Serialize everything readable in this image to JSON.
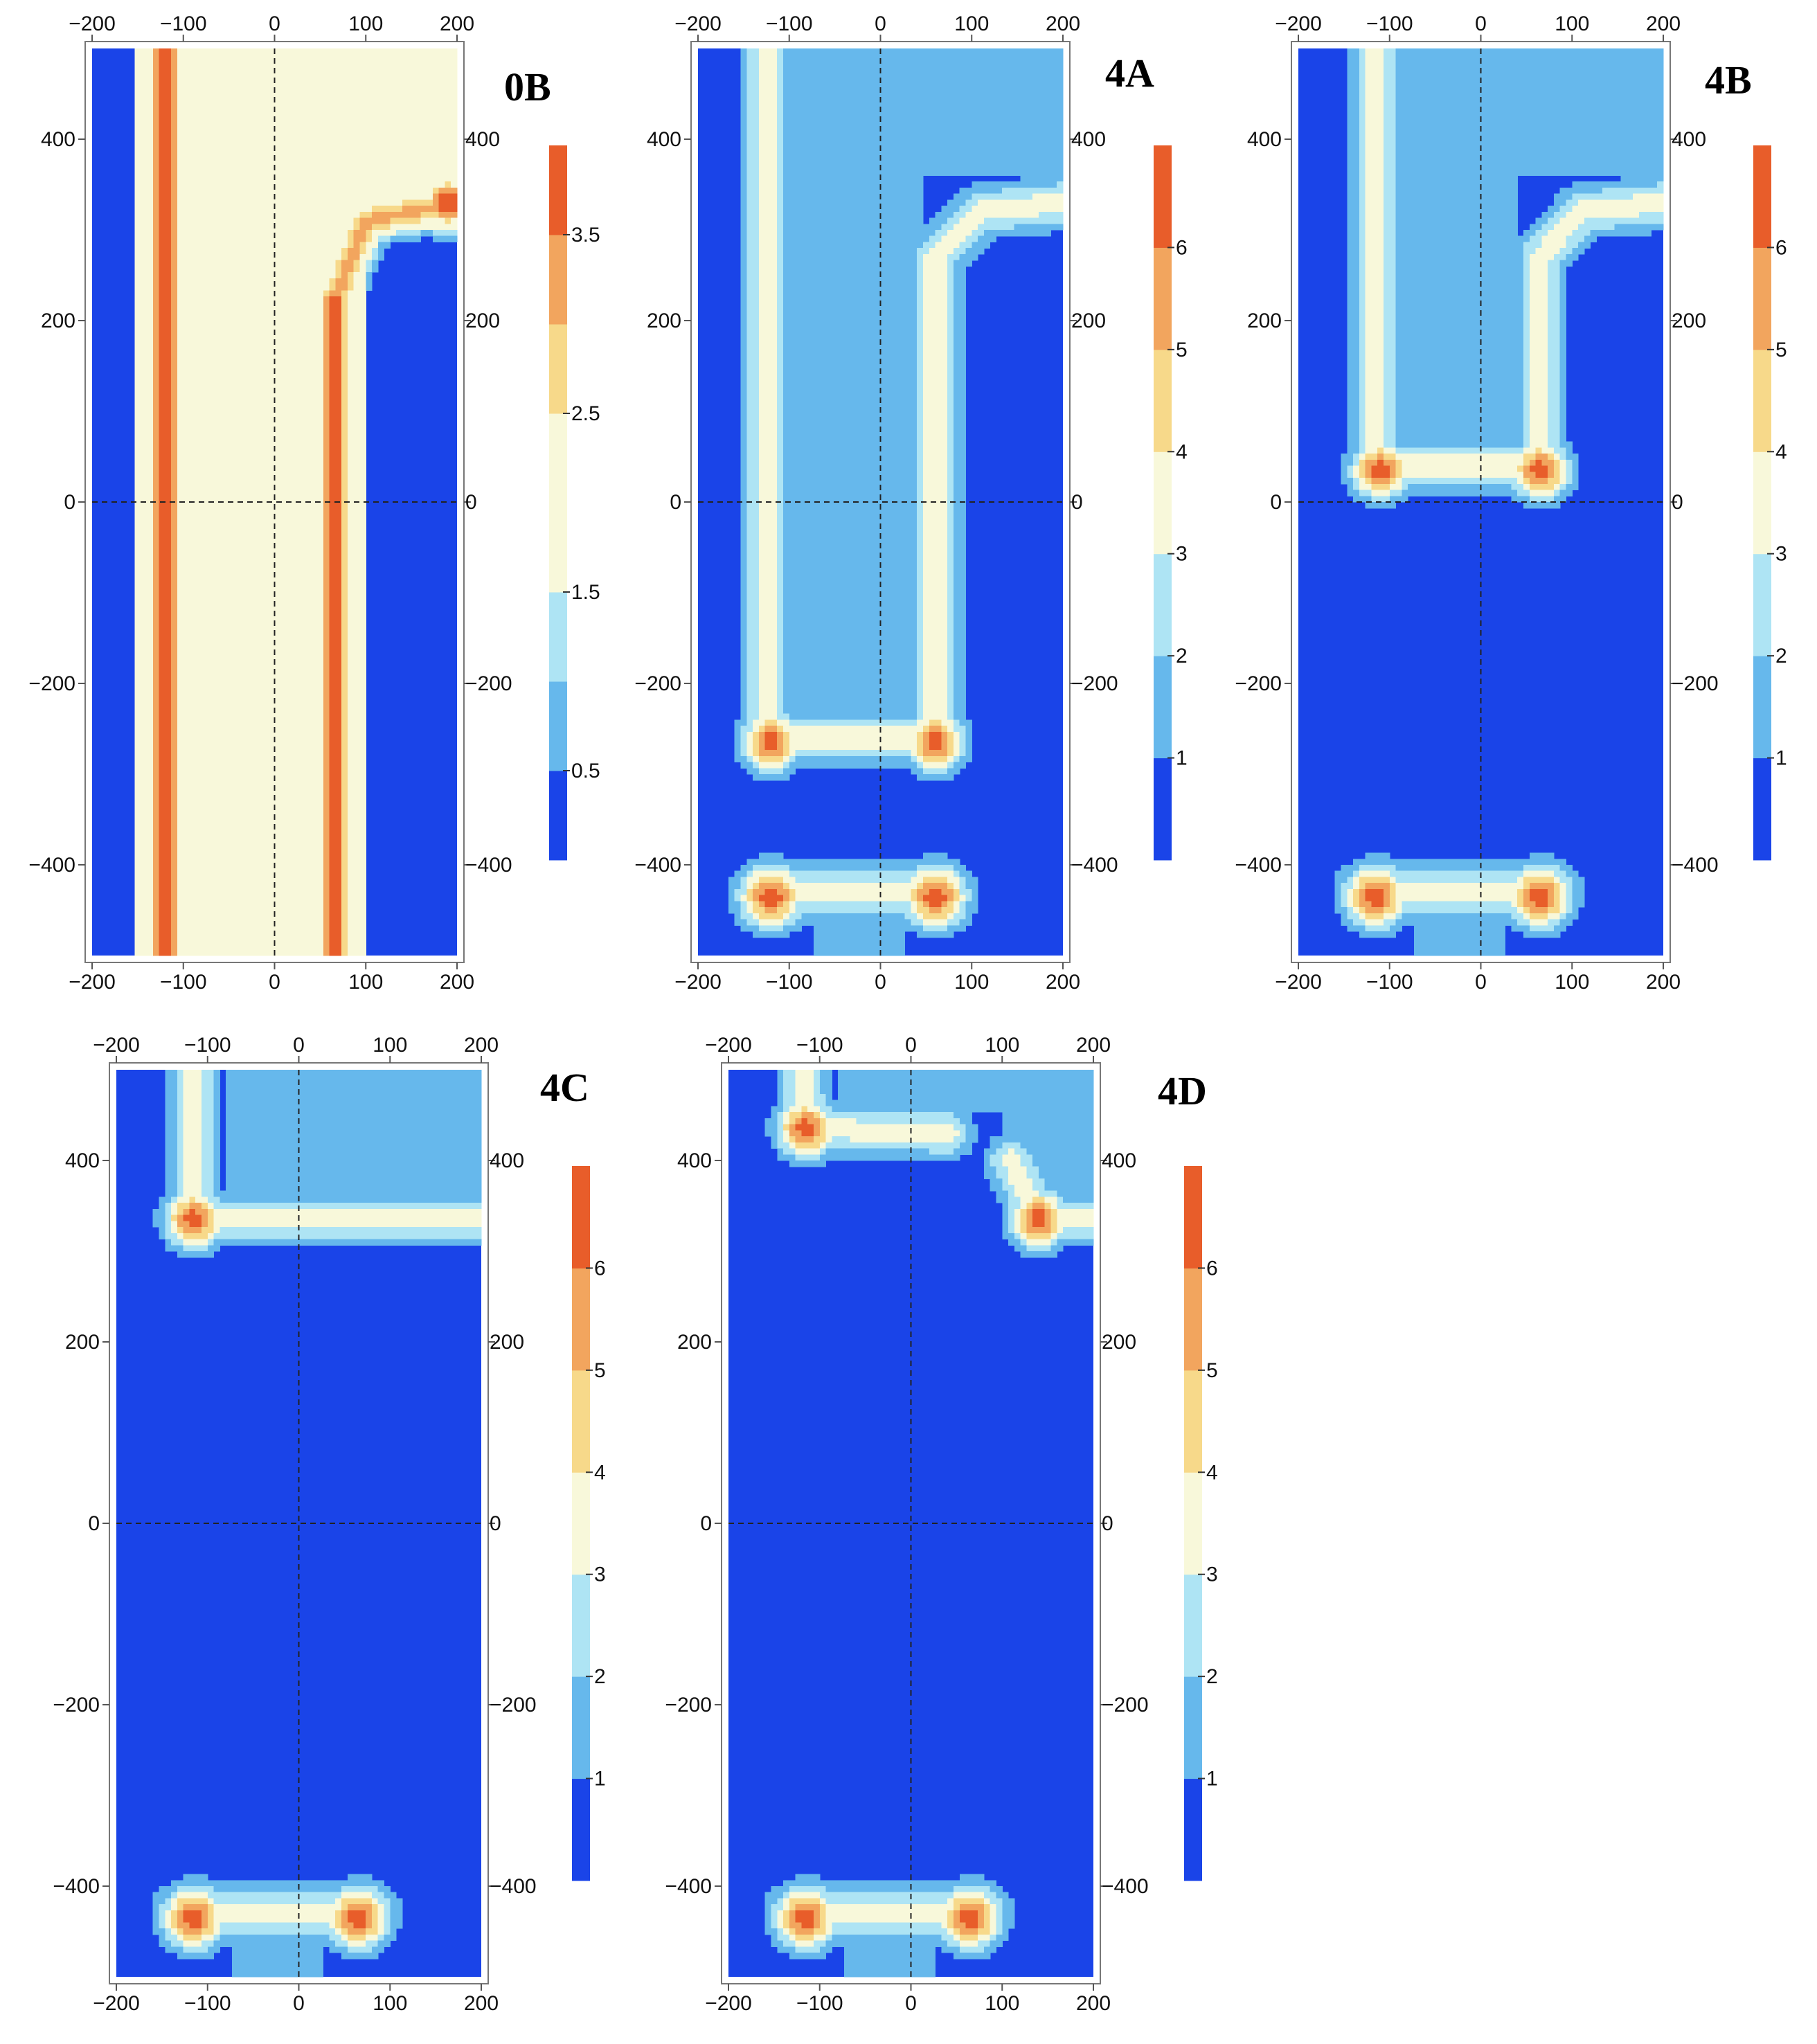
{
  "chart_data": [
    {
      "type": "heatmap",
      "panel_label": "0B",
      "x_ticks": [
        "−200",
        "−100",
        "0",
        "100",
        "200"
      ],
      "y_ticks": [
        "400",
        "200",
        "0",
        "−200",
        "−400"
      ],
      "xlim": [
        -200,
        200
      ],
      "ylim": [
        -500,
        500
      ],
      "reference_lines": {
        "x": 0,
        "y": 0,
        "style": "dashed"
      },
      "colorbar": {
        "range": [
          0,
          4
        ],
        "levels": [
          0,
          0.5,
          1,
          1.5,
          2,
          2.5,
          3,
          3.5,
          4
        ],
        "tick_values": [
          0.5,
          1.5,
          2.5,
          3.5
        ],
        "tick_labels": [
          "0.5",
          "1.5",
          "2.5",
          "3.5"
        ]
      },
      "features": [
        {
          "kind": "vertical-band",
          "x": -120,
          "y_range": [
            -500,
            500
          ],
          "peak": 3.9
        },
        {
          "kind": "vertical-band",
          "x": 65,
          "y_range": [
            -500,
            230
          ],
          "peak": 3.9
        },
        {
          "kind": "horizontal-band",
          "y": 330,
          "x_range": [
            50,
            200
          ],
          "peak": 3.8
        }
      ]
    },
    {
      "type": "heatmap",
      "panel_label": "4A",
      "x_ticks": [
        "−200",
        "−100",
        "0",
        "100",
        "200"
      ],
      "y_ticks": [
        "400",
        "200",
        "0",
        "−200",
        "−400"
      ],
      "xlim": [
        -200,
        200
      ],
      "ylim": [
        -500,
        500
      ],
      "reference_lines": {
        "x": 0,
        "y": 0,
        "style": "dashed"
      },
      "colorbar": {
        "range": [
          0,
          7
        ],
        "levels": [
          0,
          1,
          2,
          3,
          4,
          5,
          6,
          7
        ],
        "tick_values": [
          1,
          2,
          3,
          4,
          5,
          6
        ],
        "tick_labels": [
          "1",
          "2",
          "3",
          "4",
          "5",
          "6"
        ]
      },
      "features": [
        {
          "kind": "hot-spot",
          "x": -120,
          "y": -265,
          "peak": 6.6
        },
        {
          "kind": "hot-spot",
          "x": 60,
          "y": -265,
          "peak": 6.6
        },
        {
          "kind": "hot-spot",
          "x": -120,
          "y": -435,
          "peak": 6.6
        },
        {
          "kind": "hot-spot",
          "x": 60,
          "y": -435,
          "peak": 6.6
        }
      ]
    },
    {
      "type": "heatmap",
      "panel_label": "4B",
      "x_ticks": [
        "−200",
        "−100",
        "0",
        "100",
        "200"
      ],
      "y_ticks": [
        "400",
        "200",
        "0",
        "−200",
        "−400"
      ],
      "xlim": [
        -200,
        200
      ],
      "ylim": [
        -500,
        500
      ],
      "reference_lines": {
        "x": 0,
        "y": 0,
        "style": "dashed"
      },
      "colorbar": {
        "range": [
          0,
          7
        ],
        "levels": [
          0,
          1,
          2,
          3,
          4,
          5,
          6,
          7
        ],
        "tick_values": [
          1,
          2,
          3,
          4,
          5,
          6
        ],
        "tick_labels": [
          "1",
          "2",
          "3",
          "4",
          "5",
          "6"
        ]
      },
      "features": [
        {
          "kind": "hot-spot",
          "x": -110,
          "y": 35,
          "peak": 6.6
        },
        {
          "kind": "hot-spot",
          "x": 65,
          "y": 35,
          "peak": 6.6
        },
        {
          "kind": "hot-spot",
          "x": -115,
          "y": -435,
          "peak": 6.6
        },
        {
          "kind": "hot-spot",
          "x": 65,
          "y": -435,
          "peak": 6.6
        }
      ]
    },
    {
      "type": "heatmap",
      "panel_label": "4C",
      "x_ticks": [
        "−200",
        "−100",
        "0",
        "100",
        "200"
      ],
      "y_ticks": [
        "400",
        "200",
        "0",
        "−200",
        "−400"
      ],
      "xlim": [
        -200,
        200
      ],
      "ylim": [
        -500,
        500
      ],
      "reference_lines": {
        "x": 0,
        "y": 0,
        "style": "dashed"
      },
      "colorbar": {
        "range": [
          0,
          7
        ],
        "levels": [
          0,
          1,
          2,
          3,
          4,
          5,
          6,
          7
        ],
        "tick_values": [
          1,
          2,
          3,
          4,
          5,
          6
        ],
        "tick_labels": [
          "1",
          "2",
          "3",
          "4",
          "5",
          "6"
        ]
      },
      "features": [
        {
          "kind": "hot-spot",
          "x": -115,
          "y": 335,
          "peak": 6.6
        },
        {
          "kind": "hot-spot",
          "x": -115,
          "y": -435,
          "peak": 6.6
        },
        {
          "kind": "hot-spot",
          "x": 65,
          "y": -435,
          "peak": 6.6
        }
      ]
    },
    {
      "type": "heatmap",
      "panel_label": "4D",
      "x_ticks": [
        "−200",
        "−100",
        "0",
        "100",
        "200"
      ],
      "y_ticks": [
        "400",
        "200",
        "0",
        "−200",
        "−400"
      ],
      "xlim": [
        -200,
        200
      ],
      "ylim": [
        -500,
        500
      ],
      "reference_lines": {
        "x": 0,
        "y": 0,
        "style": "dashed"
      },
      "colorbar": {
        "range": [
          0,
          7
        ],
        "levels": [
          0,
          1,
          2,
          3,
          4,
          5,
          6,
          7
        ],
        "tick_values": [
          1,
          2,
          3,
          4,
          5,
          6
        ],
        "tick_labels": [
          "1",
          "2",
          "3",
          "4",
          "5",
          "6"
        ]
      },
      "features": [
        {
          "kind": "hot-spot",
          "x": -115,
          "y": 435,
          "peak": 6.6
        },
        {
          "kind": "hot-spot",
          "x": 140,
          "y": 335,
          "peak": 6.6
        },
        {
          "kind": "hot-spot",
          "x": -115,
          "y": -435,
          "peak": 6.6
        },
        {
          "kind": "hot-spot",
          "x": 65,
          "y": -435,
          "peak": 6.6
        }
      ]
    }
  ],
  "palette": {
    "level_colors": [
      "#1a44e8",
      "#66b8ec",
      "#aee4f4",
      "#f8f8da",
      "#f7d98a",
      "#f2a55e",
      "#e85d2a"
    ],
    "deep": "#1a44e8"
  }
}
